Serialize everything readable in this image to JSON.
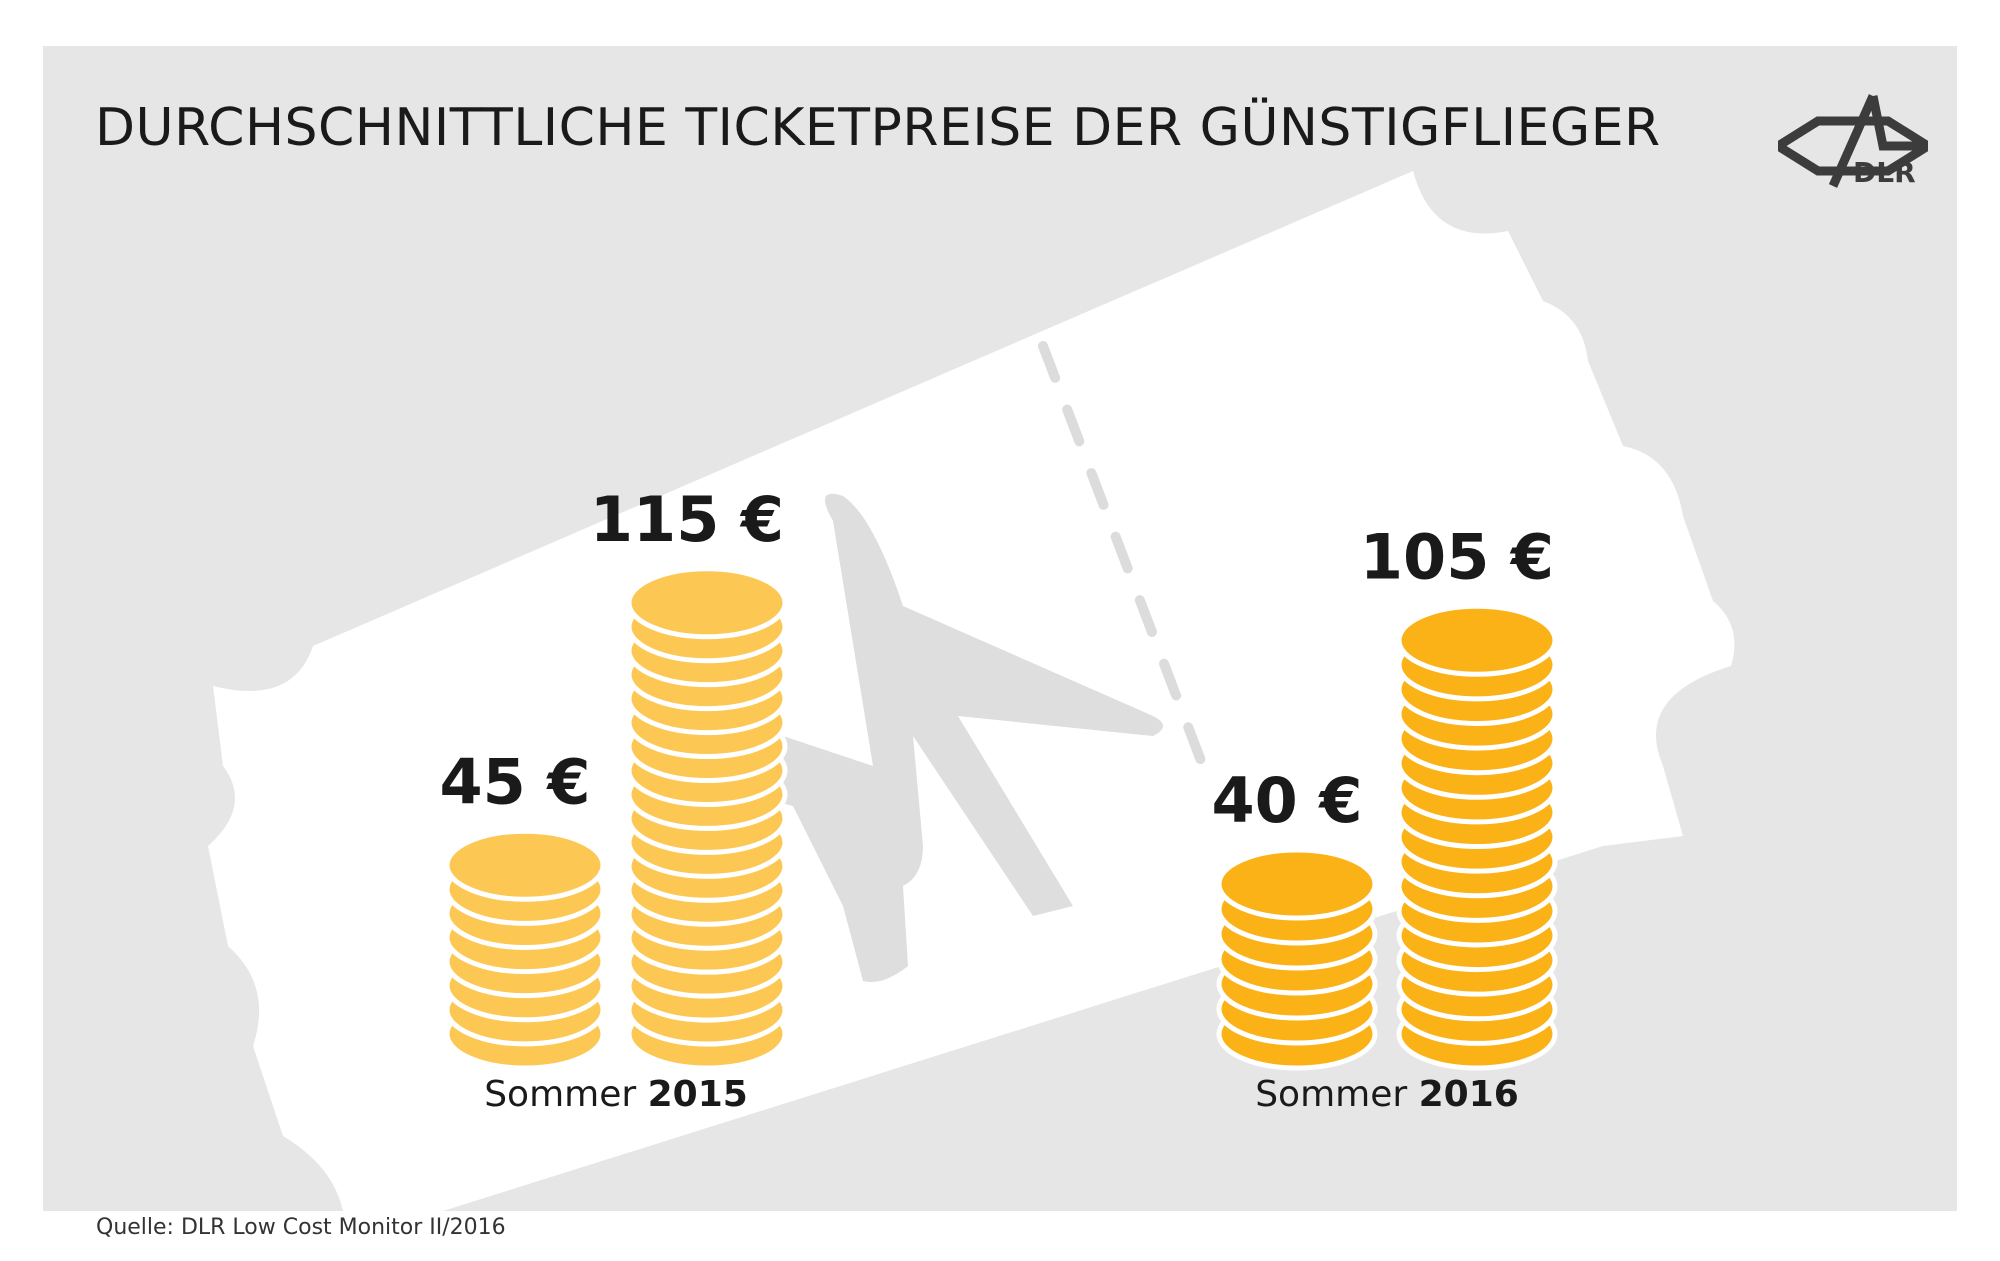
{
  "title": "DURCHSCHNITTLICHE TICKETPREISE DER GÜNSTIGFLIEGER",
  "logo": {
    "text": "DLR"
  },
  "source": "Quelle: DLR Low Cost Monitor II/2016",
  "colors": {
    "background": "#e6e6e6",
    "ticket": "#ffffff",
    "coin_2015": "#fcc853",
    "coin_2016": "#fbb217",
    "text": "#1a1a1a"
  },
  "chart_data": {
    "type": "bar",
    "groups": [
      {
        "season": "Sommer",
        "year": "2015",
        "bars": [
          {
            "label": "45 €",
            "value": 45
          },
          {
            "label": "115 €",
            "value": 115
          }
        ]
      },
      {
        "season": "Sommer",
        "year": "2016",
        "bars": [
          {
            "label": "40 €",
            "value": 40
          },
          {
            "label": "105 €",
            "value": 105
          }
        ]
      }
    ],
    "unit": "€"
  }
}
